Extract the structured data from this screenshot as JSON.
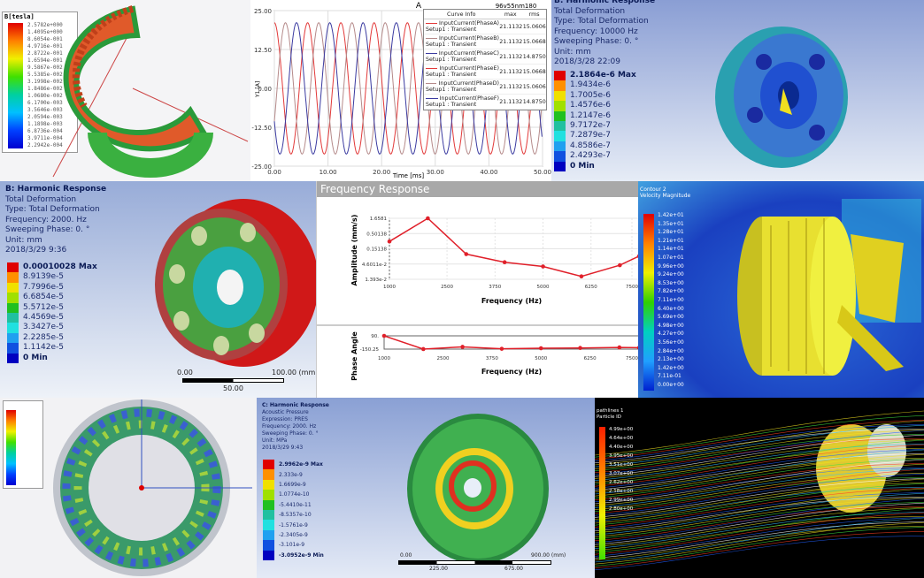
{
  "p1": {
    "legend_title": "B[tesla]",
    "legend_values": [
      "2.5782e+000",
      "1.4095e+000",
      "8.6054e-001",
      "4.9716e-001",
      "2.8722e-001",
      "1.6594e-001",
      "9.5867e-002",
      "5.5385e-002",
      "3.1998e-002",
      "1.8486e-002",
      "1.0680e-002",
      "6.1700e-003",
      "3.5646e-003",
      "2.0594e-003",
      "1.1898e-003",
      "6.8736e-004",
      "3.9711e-004",
      "2.2942e-004"
    ]
  },
  "chart_data": [
    {
      "type": "line",
      "title": "A",
      "subtitle": "96v55nm180",
      "xlabel": "Time [ms]",
      "ylabel": "Y1 [A]",
      "xlim": [
        0,
        50
      ],
      "ylim": [
        -25,
        25
      ],
      "xticks": [
        "0.00",
        "10.00",
        "20.00",
        "30.00",
        "40.00",
        "50.00"
      ],
      "yticks": [
        "25.00",
        "12.50",
        "0.00",
        "-12.50",
        "-25.00"
      ],
      "grid": true,
      "legend_placement": "top-right",
      "legend_headers": [
        "Curve Info",
        "max",
        "rms"
      ],
      "series": [
        {
          "name": "InputCurrent(PhaseA)",
          "sub": "Setup1 : Transient",
          "max": "21.1132",
          "rms": "15.0606",
          "color": "#e23a3a",
          "amplitude": 21.1132,
          "period_ms": 6.2,
          "phase_deg": 0
        },
        {
          "name": "InputCurrent(PhaseB)",
          "sub": "Setup1 : Transient",
          "max": "21.1132",
          "rms": "15.0668",
          "color": "#b58a8a",
          "amplitude": 21.1132,
          "period_ms": 6.2,
          "phase_deg": 120
        },
        {
          "name": "InputCurrent(PhaseC)",
          "sub": "Setup1 : Transient",
          "max": "21.1132",
          "rms": "14.8750",
          "color": "#3a3aa0",
          "amplitude": 21.1132,
          "period_ms": 6.2,
          "phase_deg": 240
        },
        {
          "name": "InputCurrent(PhaseE)",
          "sub": "Setup1 : Transient",
          "max": "21.1132",
          "rms": "15.0668",
          "color": "#e23a3a",
          "amplitude": 21.1132,
          "period_ms": 6.2,
          "phase_deg": 0
        },
        {
          "name": "InputCurrent(PhaseD)",
          "sub": "Setup1 : Transient",
          "max": "21.1132",
          "rms": "15.0606",
          "color": "#b58a8a",
          "amplitude": 21.1132,
          "period_ms": 6.2,
          "phase_deg": 120
        },
        {
          "name": "InputCurrent(PhaseF)",
          "sub": "Setup1 : Transient",
          "max": "21.1132",
          "rms": "14.8750",
          "color": "#3a3aa0",
          "amplitude": 21.1132,
          "period_ms": 6.2,
          "phase_deg": 240
        }
      ]
    },
    {
      "type": "line",
      "title": "Frequency Response",
      "xlabel": "Frequency (Hz)",
      "ylabel": "Amplitude (mm/s)",
      "yscale": "log",
      "xlim": [
        1000,
        7500
      ],
      "xticks": [
        "1000",
        "2500",
        "3750",
        "5000",
        "6250",
        "7500"
      ],
      "yticks": [
        "1.6581",
        "0.50138",
        "0.15138",
        "4.6011e-2",
        "1.393e-2"
      ],
      "ylim": [
        0.01393,
        1.6581
      ],
      "grid": true,
      "color": "#e0202a",
      "x": [
        1000,
        2000,
        3000,
        4000,
        5000,
        6000,
        7000,
        7500
      ],
      "y": [
        0.27,
        1.6581,
        0.1,
        0.053,
        0.038,
        0.0175,
        0.042,
        0.085
      ]
    },
    {
      "type": "line",
      "xlabel": "Frequency (Hz)",
      "ylabel": "Phase Angle",
      "xlim": [
        1000,
        7500
      ],
      "ylim": [
        -150.25,
        90
      ],
      "xticks": [
        "1000",
        "2500",
        "3750",
        "5000",
        "6250",
        "7500"
      ],
      "yticks": [
        "90.",
        "-150.25"
      ],
      "color": "#e0202a",
      "x": [
        1000,
        2000,
        3000,
        4000,
        5000,
        6000,
        7000,
        7500
      ],
      "y": [
        90,
        -150,
        -110,
        -145,
        -135,
        -130,
        -120,
        -125
      ]
    }
  ],
  "p3": {
    "info": [
      "B: Harmonic Response",
      "Total Deformation",
      "Type: Total Deformation",
      "Frequency: 10000 Hz",
      "Sweeping Phase: 0. °",
      "Unit: mm",
      "2018/3/28 22:09"
    ],
    "legend_values": [
      "2.1864e-6 Max",
      "1.9434e-6",
      "1.7005e-6",
      "1.4576e-6",
      "1.2147e-6",
      "9.7172e-7",
      "7.2879e-7",
      "4.8586e-7",
      "2.4293e-7",
      "0 Min"
    ]
  },
  "p4": {
    "info": [
      "B: Harmonic Response",
      "Total Deformation",
      "Type: Total Deformation",
      "Frequency: 2000. Hz",
      "Sweeping Phase: 0. °",
      "Unit: mm",
      "2018/3/29 9:36"
    ],
    "legend_values": [
      "0.00010028 Max",
      "8.9139e-5",
      "7.7996e-5",
      "6.6854e-5",
      "5.5712e-5",
      "4.4569e-5",
      "3.3427e-5",
      "2.2285e-5",
      "1.1142e-5",
      "0 Min"
    ],
    "scale": {
      "left": "0.00",
      "right": "100.00 (mm)",
      "mid": "50.00"
    }
  },
  "p6": {
    "info": [
      "Contour 2",
      "Velocity Magnitude"
    ],
    "legend_values": [
      "1.42e+01",
      "1.35e+01",
      "1.28e+01",
      "1.21e+01",
      "1.14e+01",
      "1.07e+01",
      "9.96e+00",
      "9.24e+00",
      "8.53e+00",
      "7.82e+00",
      "7.11e+00",
      "6.40e+00",
      "5.69e+00",
      "4.98e+00",
      "4.27e+00",
      "3.56e+00",
      "2.84e+00",
      "2.13e+00",
      "1.42e+00",
      "7.11e-01",
      "0.00e+00"
    ]
  },
  "p8": {
    "info": [
      "C: Harmonic Response",
      "Acoustic Pressure",
      "Expression: PRES",
      "Frequency: 2000. Hz",
      "Sweeping Phase: 0. °",
      "Unit: MPa",
      "2018/3/29 9:43"
    ],
    "legend_values": [
      "2.9962e-9 Max",
      "2.333e-9",
      "1.6699e-9",
      "1.0774e-10",
      "-5.4410e-11",
      "-8.5357e-10",
      "-1.5761e-9",
      "-2.3405e-9",
      "-3.101e-9",
      "-3.0952e-9 Min"
    ],
    "scale": {
      "left": "0.00",
      "right": "900.00 (mm)",
      "a": "225.00",
      "b": "675.00"
    }
  },
  "p9": {
    "info": [
      "pathlines 1",
      "Particle ID"
    ],
    "legend_values": [
      "4.99e+00",
      "4.64e+00",
      "4.40e+00",
      "3.95e+00",
      "3.51e+00",
      "3.07e+00",
      "2.62e+00",
      "2.18e+00",
      "2.99e+00",
      "2.80e+00"
    ]
  }
}
